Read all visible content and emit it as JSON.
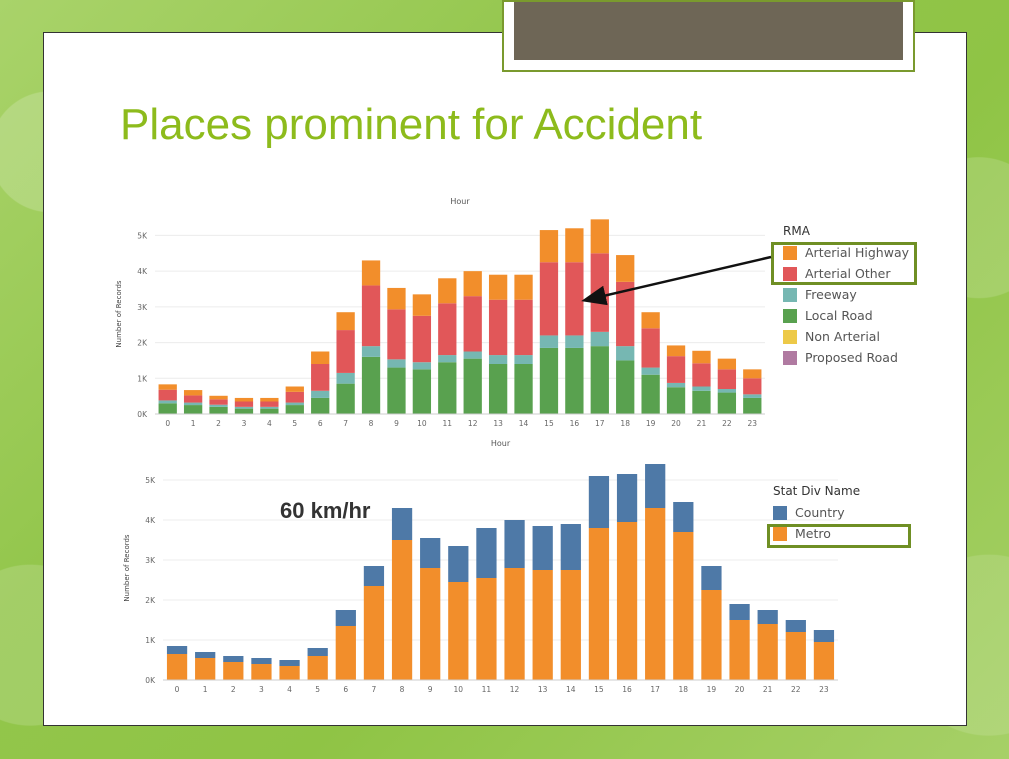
{
  "slide": {
    "title": "Places prominent for Accident",
    "annotation": "60 km/hr"
  },
  "colors": {
    "arterial_highway": "#f28e2b",
    "arterial_other": "#e15759",
    "freeway": "#76b7b2",
    "local_road": "#59a14f",
    "non_arterial": "#edc948",
    "proposed_road": "#b07aa1",
    "country": "#4e79a7",
    "metro": "#f28e2b",
    "title": "#8dbb1c",
    "highlight": "#6f8f24"
  },
  "legend_rma": {
    "title": "RMA",
    "items": [
      "Arterial Highway",
      "Arterial Other",
      "Freeway",
      "Local Road",
      "Non Arterial",
      "Proposed Road"
    ]
  },
  "legend_stat": {
    "title": "Stat Div Name",
    "items": [
      "Country",
      "Metro"
    ]
  },
  "chart_data": [
    {
      "type": "bar",
      "stacked": true,
      "title": "Hour",
      "xlabel": "",
      "ylabel": "Number of Records",
      "ylim": [
        0,
        5600
      ],
      "yticks": [
        0,
        1000,
        2000,
        3000,
        4000,
        5000
      ],
      "ytick_labels": [
        "0K",
        "1K",
        "2K",
        "3K",
        "4K",
        "5K"
      ],
      "categories": [
        "0",
        "1",
        "2",
        "3",
        "4",
        "5",
        "6",
        "7",
        "8",
        "9",
        "10",
        "11",
        "12",
        "13",
        "14",
        "15",
        "16",
        "17",
        "18",
        "19",
        "20",
        "21",
        "22",
        "23"
      ],
      "legend_position": "right",
      "series": [
        {
          "name": "Local Road",
          "values": [
            300,
            250,
            200,
            150,
            150,
            250,
            450,
            850,
            1600,
            1300,
            1250,
            1450,
            1550,
            1400,
            1400,
            1850,
            1850,
            1900,
            1500,
            1100,
            750,
            650,
            600,
            450
          ]
        },
        {
          "name": "Freeway",
          "values": [
            80,
            70,
            60,
            50,
            50,
            70,
            200,
            300,
            300,
            230,
            200,
            200,
            200,
            250,
            250,
            350,
            350,
            400,
            400,
            200,
            120,
            120,
            100,
            100
          ]
        },
        {
          "name": "Arterial Other",
          "values": [
            300,
            200,
            150,
            150,
            150,
            300,
            750,
            1200,
            1700,
            1400,
            1300,
            1450,
            1550,
            1550,
            1550,
            2050,
            2050,
            2200,
            1800,
            1100,
            750,
            650,
            550,
            450
          ]
        },
        {
          "name": "Arterial Highway",
          "values": [
            150,
            150,
            100,
            100,
            100,
            150,
            350,
            500,
            700,
            600,
            600,
            700,
            700,
            700,
            700,
            900,
            950,
            950,
            750,
            450,
            300,
            350,
            300,
            250
          ]
        },
        {
          "name": "Non Arterial",
          "values": [
            0,
            0,
            0,
            0,
            0,
            0,
            0,
            0,
            0,
            0,
            0,
            0,
            0,
            0,
            0,
            0,
            0,
            0,
            0,
            0,
            0,
            0,
            0,
            0
          ]
        },
        {
          "name": "Proposed Road",
          "values": [
            0,
            0,
            0,
            0,
            0,
            0,
            0,
            0,
            0,
            0,
            0,
            0,
            0,
            0,
            0,
            0,
            0,
            0,
            0,
            0,
            0,
            0,
            0,
            0
          ]
        }
      ]
    },
    {
      "type": "bar",
      "stacked": true,
      "title": "Hour",
      "xlabel": "",
      "ylabel": "Number of Records",
      "ylim": [
        0,
        5600
      ],
      "yticks": [
        0,
        1000,
        2000,
        3000,
        4000,
        5000
      ],
      "ytick_labels": [
        "0K",
        "1K",
        "2K",
        "3K",
        "4K",
        "5K"
      ],
      "categories": [
        "0",
        "1",
        "2",
        "3",
        "4",
        "5",
        "6",
        "7",
        "8",
        "9",
        "10",
        "11",
        "12",
        "13",
        "14",
        "15",
        "16",
        "17",
        "18",
        "19",
        "20",
        "21",
        "22",
        "23"
      ],
      "legend_position": "right",
      "series": [
        {
          "name": "Metro",
          "values": [
            650,
            550,
            450,
            400,
            350,
            600,
            1350,
            2350,
            3500,
            2800,
            2450,
            2550,
            2800,
            2750,
            2750,
            3800,
            3950,
            4300,
            3700,
            2250,
            1500,
            1400,
            1200,
            950
          ]
        },
        {
          "name": "Country",
          "values": [
            200,
            150,
            150,
            150,
            150,
            200,
            400,
            500,
            800,
            750,
            900,
            1250,
            1200,
            1100,
            1150,
            1300,
            1200,
            1100,
            750,
            600,
            400,
            350,
            300,
            300
          ]
        }
      ]
    }
  ]
}
